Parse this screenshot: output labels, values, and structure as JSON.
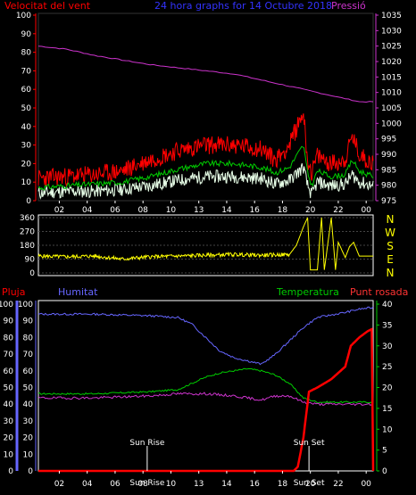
{
  "chart_data": [
    {
      "type": "line",
      "title": "24 hora graphs for 14 Octubre 2018",
      "left_axis_label": "Velocitat del vent",
      "right_axis_label": "Pressió",
      "x_ticks": [
        "02",
        "04",
        "06",
        "08",
        "10",
        "13",
        "14",
        "16",
        "18",
        "20",
        "22",
        "00"
      ],
      "left_ylim": [
        0,
        100
      ],
      "left_ticks": [
        "0",
        "10",
        "20",
        "30",
        "40",
        "50",
        "60",
        "70",
        "80",
        "90",
        "100"
      ],
      "right_ylim": [
        975,
        1035
      ],
      "right_ticks": [
        "975",
        "980",
        "985",
        "990",
        "995",
        "1000",
        "1005",
        "1010",
        "1015",
        "1020",
        "1025",
        "1030",
        "1035"
      ],
      "colors": {
        "gust": "#ff0000",
        "wind_avg": "#00cc00",
        "wind_min": "#e8ffe8",
        "pressure": "#cc33cc",
        "axis_left": "#ff0000",
        "axis_right": "#cc33cc",
        "title": "#3333ff"
      },
      "series": [
        {
          "key": "pressure",
          "axis": "right",
          "hours": [
            0,
            2,
            4,
            6,
            8,
            10,
            12,
            14,
            16,
            18,
            19,
            20,
            22,
            23,
            24
          ],
          "values": [
            1025,
            1024,
            1022,
            1020.5,
            1019,
            1018,
            1017,
            1016,
            1014,
            1012,
            1011,
            1010,
            1008,
            1007,
            1007
          ]
        },
        {
          "key": "gust",
          "axis": "left",
          "hours": [
            0,
            2,
            4,
            6,
            8,
            10,
            12,
            14,
            16,
            17,
            18,
            19,
            19.3,
            19.6,
            20,
            21,
            22,
            22.5,
            23,
            24
          ],
          "values": [
            12,
            13,
            14,
            16,
            22,
            27,
            30,
            30,
            28,
            22,
            30,
            48,
            22,
            15,
            24,
            20,
            22,
            35,
            25,
            20
          ]
        },
        {
          "key": "wind_avg",
          "axis": "left",
          "hours": [
            0,
            2,
            4,
            6,
            8,
            10,
            12,
            14,
            16,
            17,
            18,
            19,
            19.3,
            19.6,
            20,
            21,
            22,
            22.5,
            23,
            24
          ],
          "values": [
            7,
            8,
            9,
            10,
            13,
            17,
            20,
            20,
            18,
            15,
            18,
            30,
            15,
            8,
            16,
            13,
            14,
            22,
            16,
            13
          ]
        },
        {
          "key": "wind_min",
          "axis": "left",
          "hours": [
            0,
            2,
            4,
            6,
            8,
            10,
            12,
            14,
            16,
            17,
            18,
            19,
            19.3,
            19.6,
            20,
            21,
            22,
            22.5,
            23,
            24
          ],
          "values": [
            4,
            5,
            5,
            6,
            8,
            11,
            13,
            13,
            12,
            9,
            11,
            18,
            8,
            3,
            10,
            8,
            9,
            14,
            10,
            8
          ]
        }
      ]
    },
    {
      "type": "line",
      "title": "",
      "ylim": [
        0,
        360
      ],
      "y_ticks": [
        "0",
        "90",
        "180",
        "270",
        "360"
      ],
      "compass": [
        "N",
        "W",
        "S",
        "E",
        "N"
      ],
      "color": "#ffff00",
      "series": [
        {
          "key": "wind_direction",
          "hours": [
            0,
            2,
            4,
            5,
            6,
            8,
            10,
            12,
            14,
            16,
            18,
            18.5,
            19,
            19.3,
            19.5,
            20,
            20.3,
            20.5,
            21,
            21.3,
            21.5,
            22,
            22.3,
            22.6,
            23,
            24
          ],
          "values": [
            110,
            105,
            110,
            100,
            90,
            105,
            110,
            115,
            120,
            115,
            120,
            180,
            300,
            360,
            20,
            20,
            360,
            20,
            360,
            20,
            200,
            100,
            170,
            200,
            110,
            110
          ]
        }
      ]
    },
    {
      "type": "line",
      "labels": {
        "rain": "Pluja",
        "humidity": "Humitat",
        "temperature": "Temperatura",
        "dewpoint": "Punt rosada"
      },
      "left_ylim": [
        0,
        100
      ],
      "left_ticks": [
        "0",
        "10",
        "20",
        "30",
        "40",
        "50",
        "60",
        "70",
        "80",
        "90",
        "100"
      ],
      "right_ylim": [
        0,
        40
      ],
      "right_ticks": [
        "0",
        "5",
        "10",
        "15",
        "20",
        "25",
        "30",
        "35",
        "40"
      ],
      "x_ticks": [
        "02",
        "04",
        "06",
        "08",
        "10",
        "13",
        "14",
        "16",
        "18",
        "20",
        "22",
        "00"
      ],
      "annotations": [
        {
          "label": "Sun Rise",
          "hour": 7.8
        },
        {
          "label": "Sun Set",
          "hour": 19.4
        }
      ],
      "colors": {
        "rain": "#ff0000",
        "humidity": "#6666ff",
        "temperature": "#00cc00",
        "dewpoint": "#cc33cc",
        "rain_axis": "#6666ff",
        "right_axis": "#00cc00"
      },
      "series": [
        {
          "key": "humidity",
          "axis": "left",
          "hours": [
            0,
            4,
            8,
            10,
            11,
            12,
            13,
            14,
            15,
            16,
            17,
            18,
            19,
            20,
            22,
            23,
            24
          ],
          "values": [
            94,
            94,
            93,
            92,
            88,
            80,
            72,
            68,
            66,
            64,
            70,
            78,
            86,
            92,
            95,
            97,
            98
          ]
        },
        {
          "key": "temperature",
          "axis": "right",
          "hours": [
            0,
            4,
            8,
            10,
            11,
            12,
            13,
            14,
            15,
            16,
            17,
            18,
            19,
            20,
            22,
            24
          ],
          "values": [
            18.5,
            18.5,
            19,
            19.5,
            21,
            22.5,
            23.5,
            24,
            24.5,
            24,
            23,
            21,
            17.5,
            16.5,
            16.5,
            16.5
          ]
        },
        {
          "key": "dewpoint",
          "axis": "right",
          "hours": [
            0,
            4,
            8,
            10,
            12,
            14,
            15,
            16,
            17,
            18,
            19,
            20,
            22,
            24
          ],
          "values": [
            17.5,
            17.5,
            18,
            18.5,
            18.5,
            18,
            17.5,
            17,
            18,
            18,
            16.5,
            16,
            16,
            16
          ]
        },
        {
          "key": "rain",
          "axis": "right",
          "hours": [
            0,
            18.3,
            18.6,
            19.0,
            19.4,
            20,
            21,
            22,
            22.4,
            23,
            23.6,
            23.9,
            24
          ],
          "values": [
            0,
            0,
            1,
            8,
            19,
            20,
            22,
            25,
            30,
            32,
            33.5,
            34,
            0
          ]
        }
      ]
    }
  ]
}
